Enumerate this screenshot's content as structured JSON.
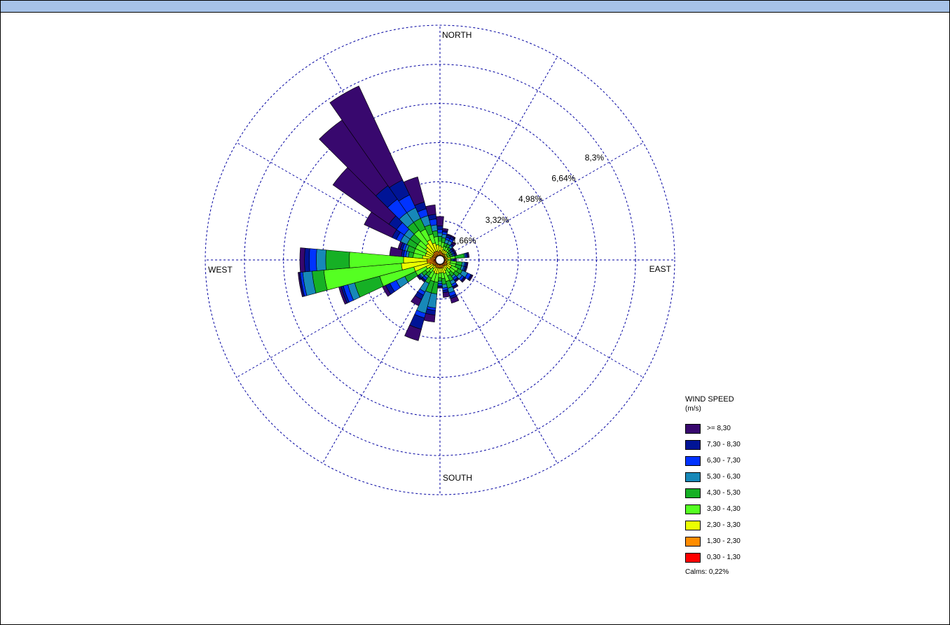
{
  "chart_data": {
    "type": "windrose",
    "direction_labels": {
      "north": "NORTH",
      "east": "EAST",
      "south": "SOUTH",
      "west": "WEST"
    },
    "rings": [
      "1,66%",
      "3,32%",
      "4,98%",
      "6,64%",
      "8,3%"
    ],
    "ring_values": [
      1.66,
      3.32,
      4.98,
      6.64,
      8.3
    ],
    "legend_title": "WIND SPEED",
    "legend_unit": "(m/s)",
    "bins": [
      {
        "label": "0,30 - 1,30",
        "color": "#ff0000"
      },
      {
        "label": "1,30 - 2,30",
        "color": "#ff8c00"
      },
      {
        "label": "2,30 - 3,30",
        "color": "#eaff00"
      },
      {
        "label": "3,30 - 4,30",
        "color": "#55ff22"
      },
      {
        "label": "4,30 - 5,30",
        "color": "#16b025"
      },
      {
        "label": "5,30 - 6,30",
        "color": "#1788b8"
      },
      {
        "label": "6,30 - 7,30",
        "color": "#0033ff"
      },
      {
        "label": "7,30 - 8,30",
        "color": "#001496"
      },
      {
        "label": ">= 8,30",
        "color": "#38086e"
      }
    ],
    "calms": "Calms: 0,22%",
    "sectors_deg": [
      0,
      10,
      20,
      30,
      40,
      50,
      60,
      70,
      80,
      90,
      100,
      110,
      120,
      130,
      140,
      150,
      160,
      170,
      180,
      190,
      200,
      210,
      220,
      230,
      240,
      250,
      260,
      270,
      280,
      290,
      300,
      310,
      320,
      330,
      340,
      350
    ],
    "cumulative_pct": [
      [
        0.05,
        0.25,
        0.45,
        0.65,
        0.85,
        1.0,
        1.15,
        1.3,
        1.7
      ],
      [
        0.05,
        0.2,
        0.4,
        0.6,
        0.8,
        0.95,
        1.05,
        1.1,
        1.2
      ],
      [
        0.05,
        0.15,
        0.3,
        0.45,
        0.6,
        0.75,
        0.85,
        0.95,
        1.0
      ],
      [
        0.05,
        0.15,
        0.3,
        0.45,
        0.6,
        0.75,
        0.85,
        0.95,
        1.0
      ],
      [
        0.05,
        0.15,
        0.3,
        0.4,
        0.5,
        0.6,
        0.65,
        0.7,
        0.8
      ],
      [
        0.05,
        0.1,
        0.2,
        0.3,
        0.4,
        0.45,
        0.5,
        0.55,
        0.6
      ],
      [
        0.05,
        0.1,
        0.2,
        0.3,
        0.4,
        0.45,
        0.5,
        0.55,
        0.6
      ],
      [
        0.05,
        0.1,
        0.2,
        0.3,
        0.4,
        0.45,
        0.5,
        0.55,
        0.6
      ],
      [
        0.05,
        0.15,
        0.3,
        0.5,
        0.9,
        0.95,
        1.0,
        1.05,
        1.1
      ],
      [
        0.05,
        0.1,
        0.2,
        0.3,
        0.35,
        0.4,
        0.45,
        0.5,
        0.55
      ],
      [
        0.05,
        0.15,
        0.3,
        0.55,
        0.8,
        0.9,
        0.95,
        1.0,
        1.05
      ],
      [
        0.05,
        0.15,
        0.3,
        0.55,
        0.8,
        0.9,
        0.95,
        1.0,
        1.05
      ],
      [
        0.05,
        0.2,
        0.4,
        0.7,
        0.9,
        1.15,
        1.3,
        1.35,
        1.4
      ],
      [
        0.05,
        0.2,
        0.4,
        0.65,
        0.85,
        1.0,
        1.1,
        1.15,
        1.2
      ],
      [
        0.05,
        0.15,
        0.3,
        0.5,
        0.7,
        0.8,
        0.9,
        0.95,
        1.0
      ],
      [
        0.05,
        0.15,
        0.35,
        0.6,
        0.85,
        1.0,
        1.1,
        1.15,
        1.2
      ],
      [
        0.05,
        0.2,
        0.45,
        0.8,
        1.1,
        1.3,
        1.45,
        1.55,
        1.75
      ],
      [
        0.05,
        0.2,
        0.4,
        0.65,
        0.9,
        1.05,
        1.15,
        1.25,
        1.45
      ],
      [
        0.05,
        0.2,
        0.4,
        0.6,
        0.75,
        0.85,
        0.95,
        1.0,
        1.05
      ],
      [
        0.05,
        0.2,
        0.45,
        0.8,
        1.3,
        1.9,
        2.0,
        2.2,
        2.5
      ],
      [
        0.05,
        0.2,
        0.45,
        0.8,
        1.3,
        2.2,
        2.4,
        2.9,
        3.4
      ],
      [
        0.05,
        0.2,
        0.4,
        0.7,
        0.95,
        1.35,
        1.5,
        1.7,
        2.0
      ],
      [
        0.05,
        0.15,
        0.3,
        0.5,
        0.7,
        0.8,
        0.9,
        0.95,
        1.0
      ],
      [
        0.05,
        0.2,
        0.4,
        0.6,
        0.8,
        0.9,
        0.95,
        1.0,
        1.05
      ],
      [
        0.05,
        0.2,
        0.5,
        1.0,
        1.5,
        1.9,
        2.2,
        2.4,
        2.55
      ],
      [
        0.05,
        0.3,
        1.0,
        2.5,
        3.6,
        3.9,
        4.1,
        4.2,
        4.3
      ],
      [
        0.1,
        0.4,
        1.5,
        4.8,
        5.3,
        5.7,
        5.8,
        5.85,
        5.9
      ],
      [
        0.1,
        0.4,
        1.4,
        3.7,
        4.7,
        5.1,
        5.4,
        5.6,
        5.8
      ],
      [
        0.05,
        0.25,
        0.6,
        1.0,
        1.2,
        1.3,
        1.4,
        1.5,
        2.0
      ],
      [
        0.05,
        0.2,
        0.5,
        1.0,
        1.3,
        1.4,
        1.5,
        1.6,
        1.7
      ],
      [
        0.05,
        0.2,
        0.5,
        1.0,
        1.4,
        1.7,
        1.9,
        2.1,
        3.4
      ],
      [
        0.05,
        0.2,
        0.6,
        1.0,
        1.4,
        1.7,
        2.1,
        2.5,
        5.4
      ],
      [
        0.05,
        0.25,
        0.7,
        1.4,
        1.8,
        2.3,
        3.0,
        3.7,
        7.1
      ],
      [
        0.05,
        0.25,
        0.8,
        1.3,
        1.8,
        2.3,
        2.9,
        3.6,
        8.0
      ],
      [
        0.05,
        0.25,
        0.6,
        1.0,
        1.4,
        1.8,
        2.1,
        2.4,
        3.5
      ],
      [
        0.05,
        0.2,
        0.5,
        0.85,
        1.1,
        1.35,
        1.6,
        1.8,
        2.2
      ]
    ]
  }
}
